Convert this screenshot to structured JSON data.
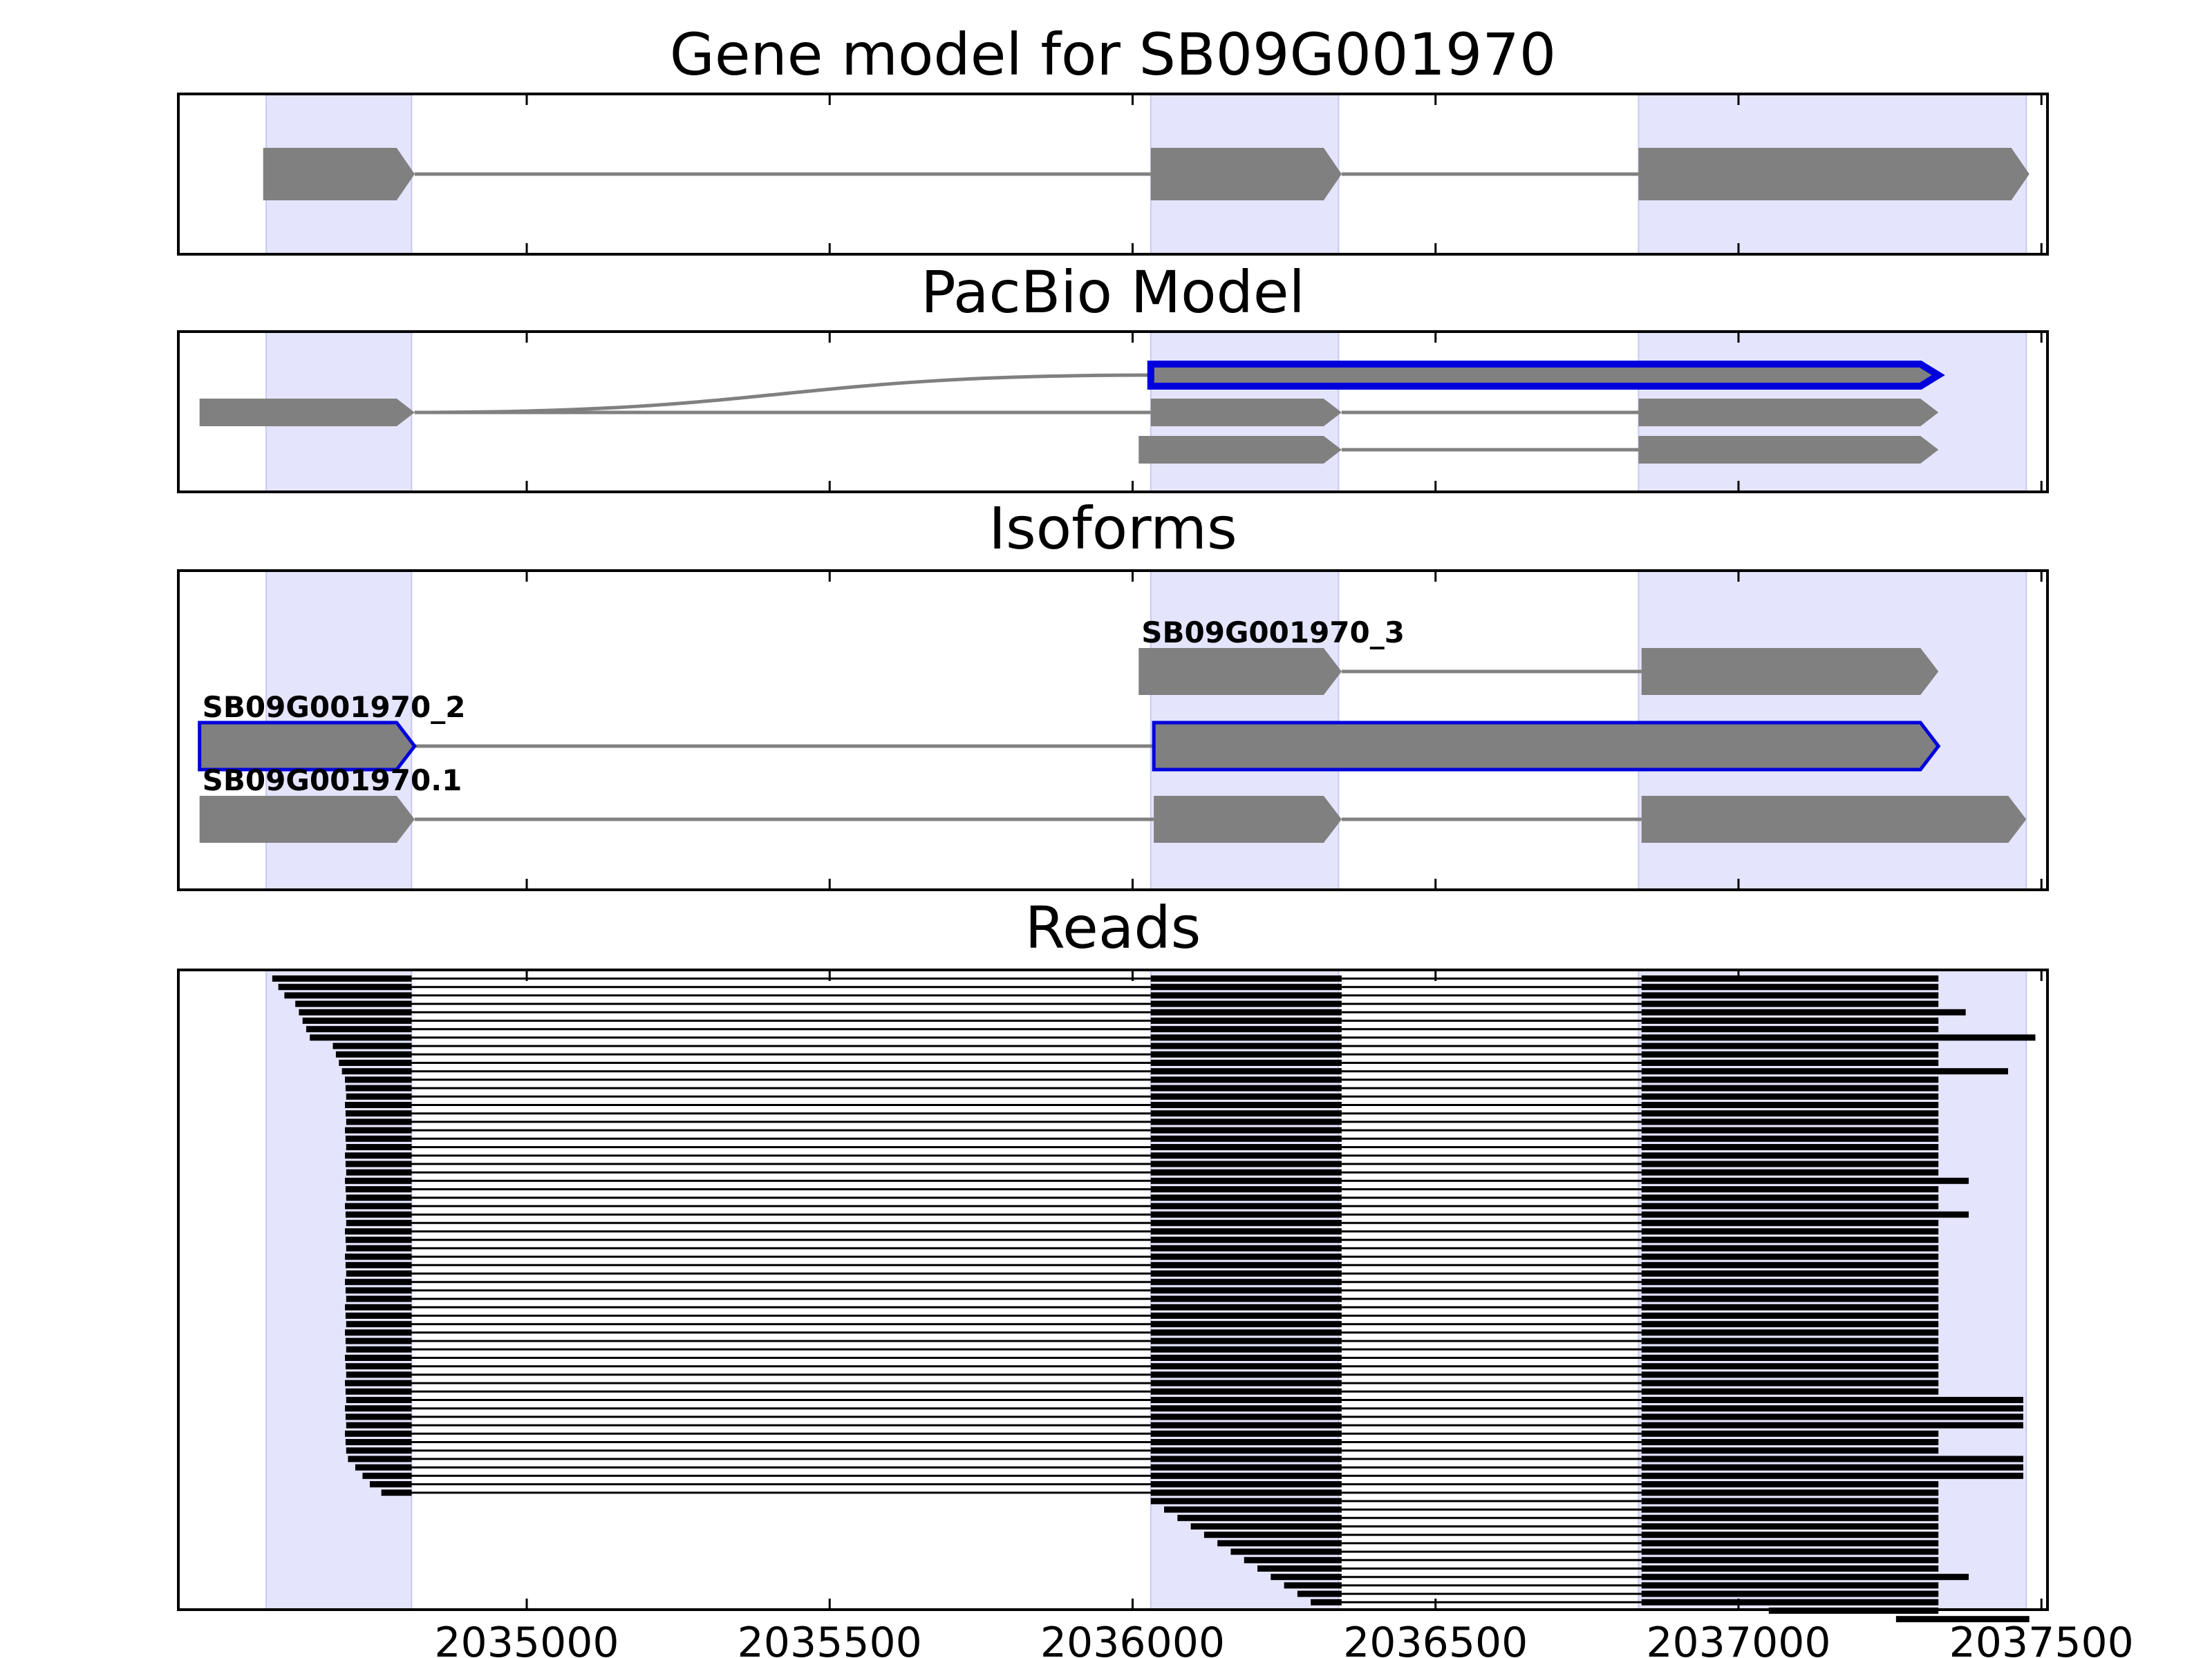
{
  "colors": {
    "exon": "#808080",
    "intron": "#808080",
    "highlight": "#0000dd",
    "shade": "#e4e4fc",
    "read": "#000000",
    "frame": "#000000"
  },
  "xaxis": {
    "min": 2034425,
    "max": 2037510,
    "ticks": [
      2035000,
      2035500,
      2036000,
      2036500,
      2037000,
      2037500
    ],
    "tick_labels": [
      "2035000",
      "2035500",
      "2036000",
      "2036500",
      "2037000",
      "2037500"
    ]
  },
  "shaded_regions": [
    [
      2034570,
      2034810
    ],
    [
      2036030,
      2036340
    ],
    [
      2036835,
      2037475
    ]
  ],
  "panels": [
    {
      "title": "Gene model for SB09G001970",
      "transcripts": [
        {
          "exons": [
            [
              2034565,
              2034815
            ],
            [
              2036030,
              2036345
            ],
            [
              2036835,
              2037480
            ]
          ],
          "highlight": false,
          "label": ""
        }
      ]
    },
    {
      "title": "PacBio Model",
      "transcripts": [
        {
          "exons": [
            [
              2036030,
              2037330
            ]
          ],
          "highlight": true,
          "label": ""
        },
        {
          "exons": [
            [
              2034460,
              2034815
            ],
            [
              2036030,
              2036345
            ],
            [
              2036835,
              2037330
            ]
          ],
          "highlight": false,
          "label": ""
        },
        {
          "exons": [
            [
              2036010,
              2036345
            ],
            [
              2036835,
              2037330
            ]
          ],
          "highlight": false,
          "label": ""
        }
      ]
    },
    {
      "title": "Isoforms",
      "transcripts": [
        {
          "exons": [
            [
              2036010,
              2036345
            ],
            [
              2036840,
              2037330
            ]
          ],
          "highlight": false,
          "label": "SB09G001970_3"
        },
        {
          "exons": [
            [
              2034460,
              2034815
            ],
            [
              2036035,
              2037330
            ]
          ],
          "highlight": true,
          "label": "SB09G001970_2"
        },
        {
          "exons": [
            [
              2034460,
              2034815
            ],
            [
              2036035,
              2036345
            ],
            [
              2036840,
              2037475
            ]
          ],
          "highlight": false,
          "label": "SB09G001970.1"
        }
      ]
    },
    {
      "title": "Reads",
      "read_block_exons": [
        [
          2034810
        ],
        [
          2036030,
          2036345
        ],
        [
          2036840
        ]
      ]
    }
  ]
}
